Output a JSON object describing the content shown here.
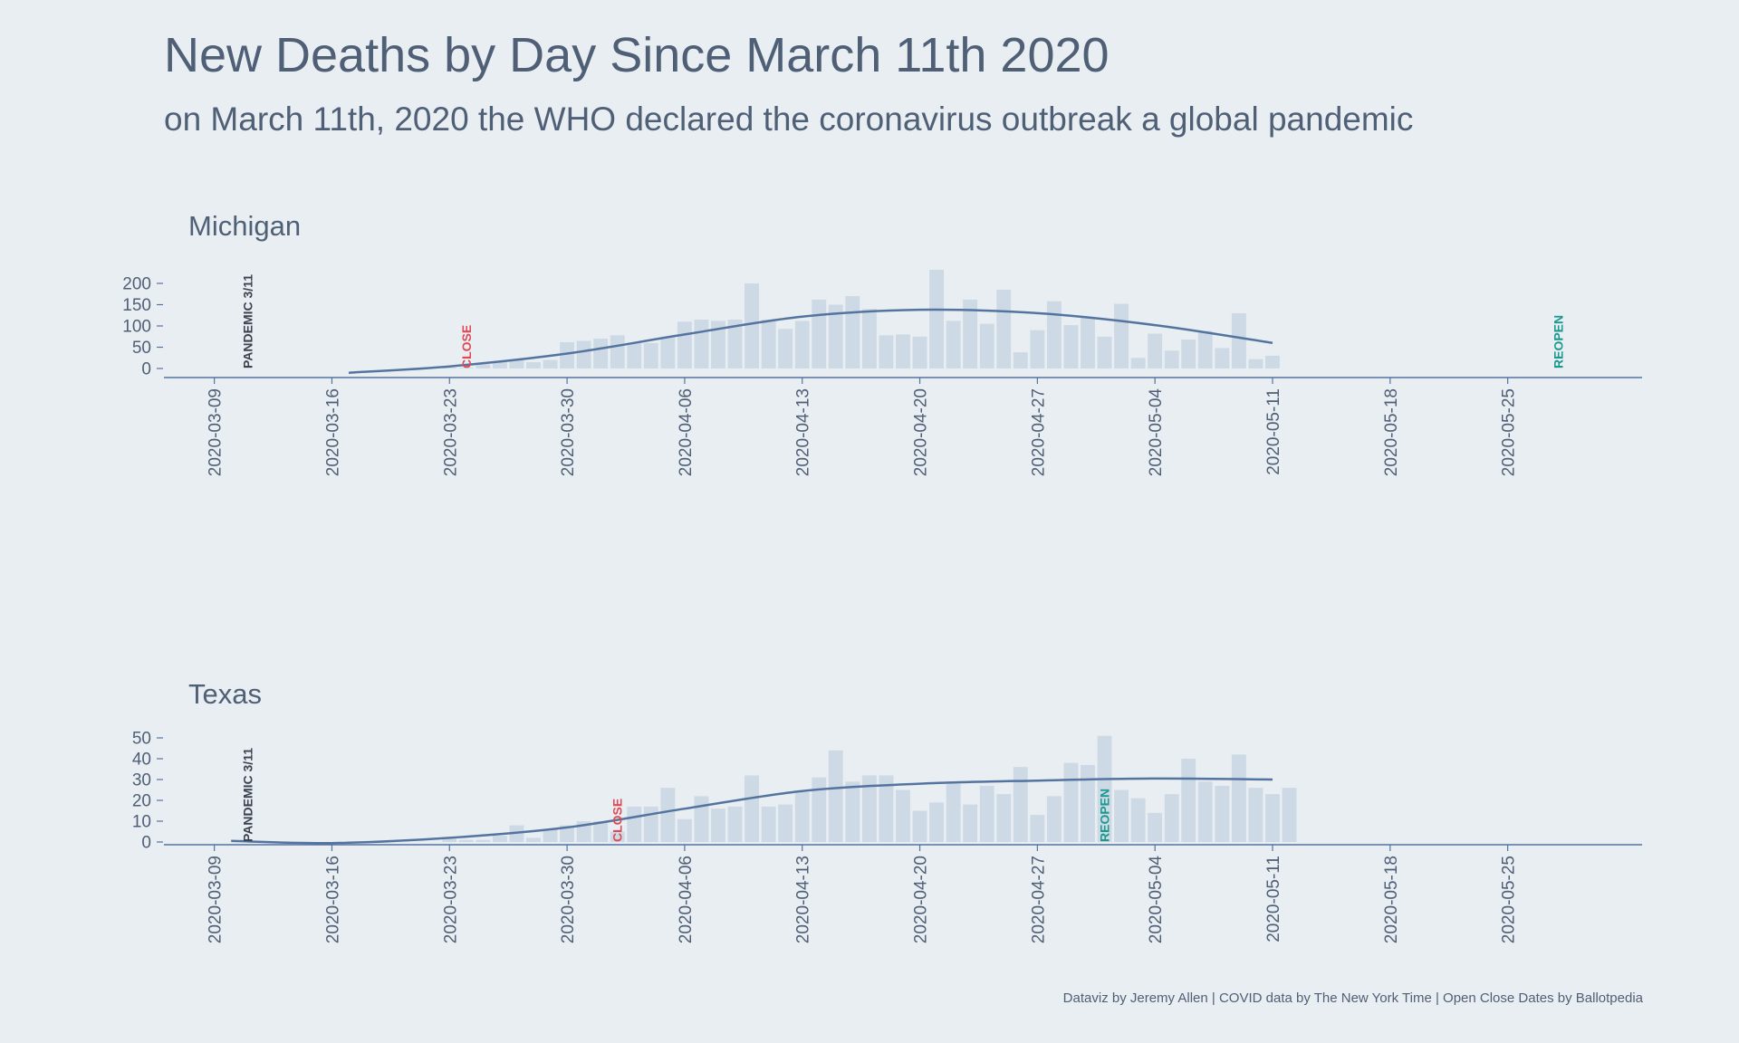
{
  "title": "New Deaths by Day Since March 11th 2020",
  "subtitle": "on March 11th, 2020 the WHO declared the coronavirus outbreak a global pandemic",
  "caption": "Dataviz by Jeremy Allen | COVID data by The New York Time | Open Close Dates by Ballotpedia",
  "colors": {
    "background": "#e9eef3",
    "text": "#4f5f75",
    "bar": "#cdd9e4",
    "trend": "#5474a0",
    "axis": "#5474a0",
    "pandemic_label": "#3b4250",
    "close_label": "#e04a55",
    "reopen_label": "#1a9a8e"
  },
  "chart_data": [
    {
      "type": "bar",
      "panel": "Michigan",
      "title": "Michigan",
      "overlay": "smoothed trend line",
      "x_ticks": [
        "2020-03-09",
        "2020-03-16",
        "2020-03-23",
        "2020-03-30",
        "2020-04-06",
        "2020-04-13",
        "2020-04-20",
        "2020-04-27",
        "2020-05-04",
        "2020-05-11",
        "2020-05-18",
        "2020-05-25"
      ],
      "y_ticks": [
        0,
        50,
        100,
        150,
        200
      ],
      "xlim": [
        "2020-03-06",
        "2020-06-02"
      ],
      "ylim": [
        -10,
        235
      ],
      "bars_start_date": "2020-03-18",
      "values": [
        0,
        0,
        0,
        0,
        0,
        2,
        2,
        10,
        15,
        20,
        15,
        20,
        62,
        65,
        70,
        78,
        60,
        60,
        75,
        110,
        115,
        112,
        115,
        200,
        115,
        93,
        112,
        162,
        150,
        170,
        140,
        78,
        80,
        75,
        232,
        112,
        162,
        105,
        185,
        38,
        90,
        158,
        102,
        120,
        75,
        152,
        25,
        82,
        42,
        68,
        88,
        48,
        130,
        22,
        30
      ],
      "trend": {
        "dates": [
          "2020-03-17",
          "2020-03-23",
          "2020-03-30",
          "2020-04-06",
          "2020-04-13",
          "2020-04-20",
          "2020-04-27",
          "2020-05-04",
          "2020-05-11"
        ],
        "values": [
          -10,
          5,
          35,
          80,
          122,
          138,
          130,
          102,
          60
        ]
      },
      "annotations": [
        {
          "label": "PANDEMIC 3/11",
          "date": "2020-03-11",
          "kind": "pandemic"
        },
        {
          "label": "CLOSE",
          "date": "2020-03-24",
          "kind": "close"
        },
        {
          "label": "REOPEN",
          "date": "2020-05-28",
          "kind": "reopen"
        }
      ]
    },
    {
      "type": "bar",
      "panel": "Texas",
      "title": "Texas",
      "overlay": "smoothed trend line",
      "x_ticks": [
        "2020-03-09",
        "2020-03-16",
        "2020-03-23",
        "2020-03-30",
        "2020-04-06",
        "2020-04-13",
        "2020-04-20",
        "2020-04-27",
        "2020-05-04",
        "2020-05-11",
        "2020-05-18",
        "2020-05-25"
      ],
      "y_ticks": [
        0,
        10,
        20,
        30,
        40,
        50
      ],
      "xlim": [
        "2020-03-06",
        "2020-06-02"
      ],
      "ylim": [
        -3,
        55
      ],
      "bars_start_date": "2020-03-21",
      "values": [
        0,
        0,
        2,
        1,
        1,
        3,
        8,
        2,
        6,
        8,
        10,
        10,
        5,
        17,
        17,
        26,
        11,
        22,
        16,
        17,
        32,
        17,
        18,
        24,
        31,
        44,
        29,
        32,
        32,
        25,
        15,
        19,
        28,
        18,
        27,
        23,
        36,
        13,
        22,
        38,
        37,
        51,
        25,
        21,
        14,
        23,
        40,
        29,
        27,
        42,
        26,
        23,
        26
      ],
      "trend": {
        "dates": [
          "2020-03-10",
          "2020-03-16",
          "2020-03-23",
          "2020-03-30",
          "2020-04-06",
          "2020-04-13",
          "2020-04-20",
          "2020-04-27",
          "2020-05-04",
          "2020-05-11"
        ],
        "values": [
          0.5,
          -0.5,
          2,
          7,
          16,
          24.5,
          28,
          29.5,
          30.5,
          30
        ]
      },
      "annotations": [
        {
          "label": "PANDEMIC 3/11",
          "date": "2020-03-11",
          "kind": "pandemic"
        },
        {
          "label": "CLOSE",
          "date": "2020-04-02",
          "kind": "close"
        },
        {
          "label": "REOPEN",
          "date": "2020-05-01",
          "kind": "reopen"
        }
      ]
    }
  ]
}
